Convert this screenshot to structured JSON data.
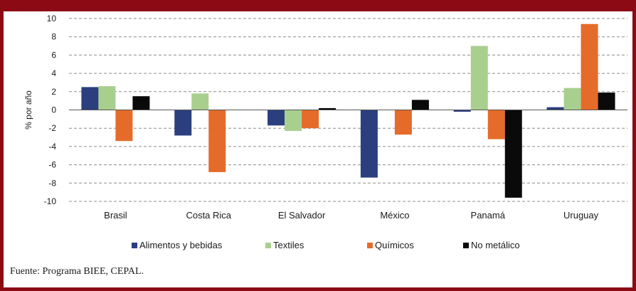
{
  "colors": {
    "frame": "#8b0a14",
    "grid": "#8c8c8c",
    "series": [
      "#2b3f7f",
      "#a9cf8f",
      "#e56b2a",
      "#0a0a0a"
    ]
  },
  "chart_data": {
    "type": "bar",
    "title": "",
    "xlabel": "",
    "ylabel": "% por año",
    "ylim": [
      -10,
      10
    ],
    "yticks": [
      -10,
      -8,
      -6,
      -4,
      -2,
      0,
      2,
      4,
      6,
      8,
      10
    ],
    "grid": true,
    "legend_position": "bottom",
    "categories": [
      "Brasil",
      "Costa Rica",
      "El Salvador",
      "México",
      "Panamá",
      "Uruguay"
    ],
    "series": [
      {
        "name": "Alimentos y bebidas",
        "values": [
          2.5,
          -2.8,
          -1.7,
          -7.4,
          -0.2,
          0.3
        ]
      },
      {
        "name": "Textiles",
        "values": [
          2.6,
          1.8,
          -2.3,
          0,
          7.0,
          2.4
        ]
      },
      {
        "name": "Químicos",
        "values": [
          -3.4,
          -6.8,
          -2.0,
          -2.7,
          -3.2,
          9.4
        ]
      },
      {
        "name": "No metálico",
        "values": [
          1.5,
          0,
          0.2,
          1.1,
          -9.6,
          1.9
        ]
      }
    ]
  },
  "source_text": "Fuente: Programa BIEE, CEPAL."
}
